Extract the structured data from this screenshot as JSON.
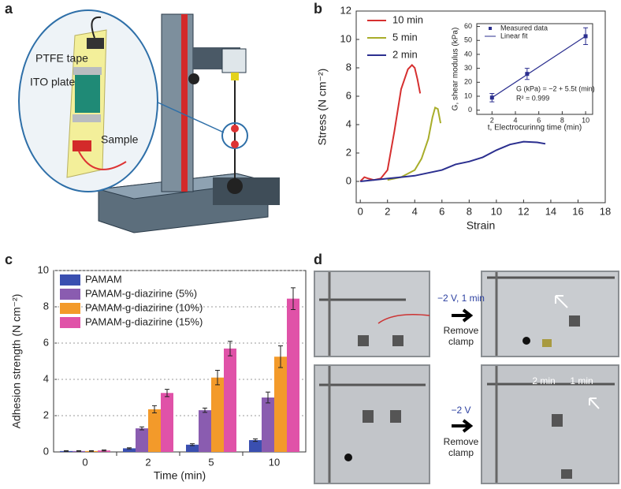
{
  "figure": {
    "panel_labels": [
      "a",
      "b",
      "c",
      "d"
    ],
    "diagram_labels": [
      "PTFE tape",
      "ITO plate",
      "Sample"
    ],
    "photo_annotations": {
      "top_arrow": "−2 V, 1 min",
      "top_action": [
        "Remove",
        "clamp"
      ],
      "bottom_arrow": "−2 V",
      "bottom_action": [
        "Remove",
        "clamp"
      ],
      "times": [
        "2 min",
        "1 min"
      ]
    }
  },
  "chart_data": [
    {
      "type": "line",
      "xlabel": "Strain",
      "ylabel": "Stress (N cm⁻²)",
      "xlim": [
        -0.3,
        18
      ],
      "xticks": [
        0,
        2,
        4,
        6,
        8,
        10,
        12,
        14,
        16,
        18
      ],
      "ylim": [
        -1.5,
        12
      ],
      "yticks": [
        0,
        2,
        4,
        6,
        8,
        10,
        12
      ],
      "series": [
        {
          "name": "10 min",
          "color": "#d62f2f",
          "x": [
            0,
            0.3,
            0.6,
            1,
            1.5,
            2,
            2.5,
            3,
            3.5,
            3.8,
            4,
            4.2,
            4.4
          ],
          "values": [
            0,
            0.3,
            0.2,
            0.1,
            0.2,
            0.8,
            3.5,
            6.5,
            7.9,
            8.2,
            8.0,
            7.2,
            6.2
          ]
        },
        {
          "name": "5 min",
          "color": "#a8ad2a",
          "x": [
            2,
            3,
            4,
            4.5,
            5,
            5.3,
            5.5,
            5.7,
            5.9
          ],
          "values": [
            0.1,
            0.3,
            0.8,
            1.6,
            3.0,
            4.5,
            5.2,
            5.1,
            4.1
          ]
        },
        {
          "name": "2 min",
          "color": "#2b2f8f",
          "x": [
            0,
            2,
            4,
            6,
            7,
            8,
            9,
            10,
            11,
            12,
            13,
            13.6
          ],
          "values": [
            0,
            0.2,
            0.4,
            0.8,
            1.2,
            1.4,
            1.7,
            2.2,
            2.6,
            2.8,
            2.75,
            2.65
          ]
        }
      ]
    },
    {
      "type": "scatter",
      "xlabel": "t, Electrocurinng time (min)",
      "ylabel": "G, shear modulus (kPa)",
      "xlim": [
        0.7,
        10.6
      ],
      "xticks": [
        2,
        4,
        6,
        8,
        10
      ],
      "ylim": [
        -3,
        62
      ],
      "yticks": [
        0,
        10,
        20,
        30,
        40,
        50,
        60
      ],
      "annotations": [
        "G (kPa) = −2 + 5.5t (min)",
        "R² = 0.999"
      ],
      "series": [
        {
          "name": "Measured data",
          "color": "#2b2f8f",
          "x": [
            2,
            5,
            10
          ],
          "values": [
            9,
            26,
            53
          ],
          "errors": [
            3,
            4,
            6
          ]
        },
        {
          "name": "Linear fit",
          "color": "#2b2f8f",
          "x": [
            2,
            10
          ],
          "values": [
            9,
            53
          ],
          "line": true
        }
      ]
    },
    {
      "type": "bar",
      "xlabel": "Time (min)",
      "ylabel": "Adhesion strength (N cm⁻²)",
      "categories": [
        "0",
        "2",
        "5",
        "10"
      ],
      "ylim": [
        0,
        10
      ],
      "yticks": [
        0,
        2,
        4,
        6,
        8,
        10
      ],
      "grid": true,
      "series": [
        {
          "name": "PAMAM",
          "color": "#3a4fb0",
          "values": [
            0.05,
            0.2,
            0.4,
            0.65
          ],
          "errors": [
            0.02,
            0.03,
            0.05,
            0.07
          ]
        },
        {
          "name": "PAMAM-g-diazirine (5%)",
          "color": "#8a5cb0",
          "values": [
            0.05,
            1.3,
            2.3,
            3.0
          ],
          "errors": [
            0.02,
            0.08,
            0.12,
            0.3
          ]
        },
        {
          "name": "PAMAM-g-diazirine (10%)",
          "color": "#f39a2a",
          "values": [
            0.05,
            2.35,
            4.1,
            5.25
          ],
          "errors": [
            0.02,
            0.2,
            0.4,
            0.6
          ]
        },
        {
          "name": "PAMAM-g-diazirine (15%)",
          "color": "#e052a8",
          "values": [
            0.08,
            3.25,
            5.7,
            8.45
          ],
          "errors": [
            0.03,
            0.2,
            0.4,
            0.6
          ]
        }
      ]
    }
  ]
}
